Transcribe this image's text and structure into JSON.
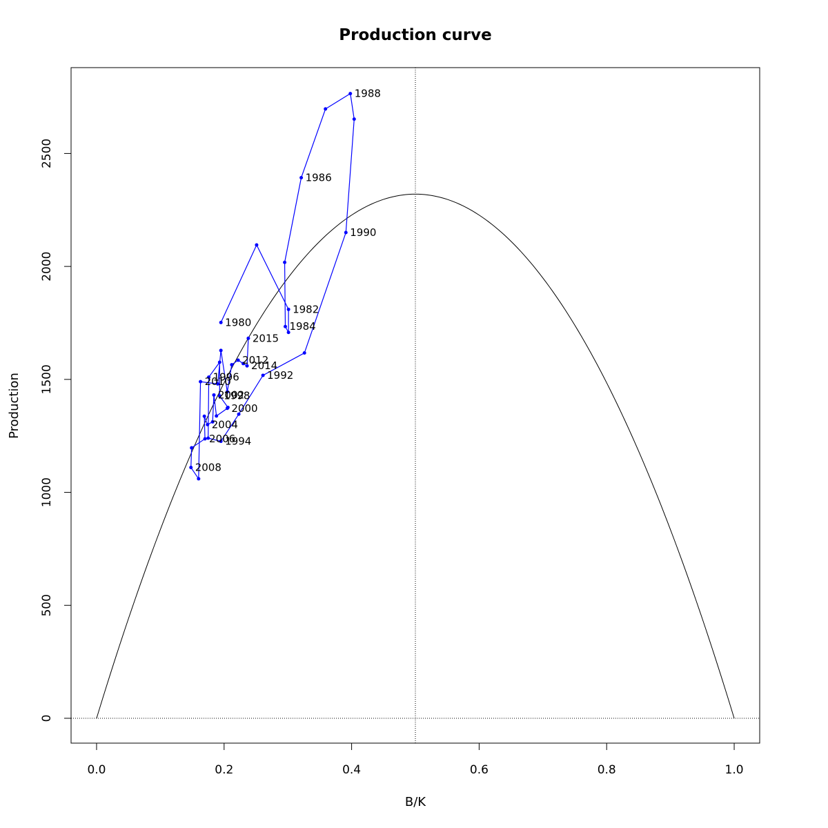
{
  "chart_data": {
    "type": "line",
    "title": "Production curve",
    "xlabel": "B/K",
    "ylabel": "Production",
    "xlim": [
      -0.04,
      1.04
    ],
    "ylim": [
      -110,
      2880
    ],
    "x_ticks": [
      0.0,
      0.2,
      0.4,
      0.6,
      0.8,
      1.0
    ],
    "x_tick_labels": [
      "0.0",
      "0.2",
      "0.4",
      "0.6",
      "0.8",
      "1.0"
    ],
    "y_ticks": [
      0,
      500,
      1000,
      1500,
      2000,
      2500
    ],
    "y_tick_labels": [
      "0",
      "500",
      "1000",
      "1500",
      "2000",
      "2500"
    ],
    "grid": false,
    "reference_lines": {
      "vertical_x": 0.5,
      "horizontal_y": 0
    },
    "colors": {
      "model_curve": "#000000",
      "series": "#0000ff",
      "reference": "#000000"
    },
    "model_curve": {
      "shape": "parabola",
      "x_range": [
        0,
        1
      ],
      "peak_x": 0.5,
      "peak_y": 2320
    },
    "series": [
      {
        "color": "#0000ff",
        "points": [
          {
            "x": 0.195,
            "y": 1752,
            "label": "1980"
          },
          {
            "x": 0.251,
            "y": 2095,
            "label": ""
          },
          {
            "x": 0.301,
            "y": 1810,
            "label": "1982"
          },
          {
            "x": 0.301,
            "y": 1708,
            "label": ""
          },
          {
            "x": 0.296,
            "y": 1734,
            "label": "1984"
          },
          {
            "x": 0.295,
            "y": 2018,
            "label": ""
          },
          {
            "x": 0.321,
            "y": 2393,
            "label": "1986"
          },
          {
            "x": 0.359,
            "y": 2697,
            "label": ""
          },
          {
            "x": 0.398,
            "y": 2765,
            "label": "1988"
          },
          {
            "x": 0.404,
            "y": 2652,
            "label": ""
          },
          {
            "x": 0.391,
            "y": 2150,
            "label": "1990"
          },
          {
            "x": 0.326,
            "y": 1617,
            "label": ""
          },
          {
            "x": 0.261,
            "y": 1518,
            "label": "1992"
          },
          {
            "x": 0.223,
            "y": 1346,
            "label": ""
          },
          {
            "x": 0.195,
            "y": 1226,
            "label": "1994"
          },
          {
            "x": 0.175,
            "y": 1240,
            "label": ""
          },
          {
            "x": 0.176,
            "y": 1510,
            "label": "1996"
          },
          {
            "x": 0.193,
            "y": 1576,
            "label": ""
          },
          {
            "x": 0.193,
            "y": 1427,
            "label": "1998"
          },
          {
            "x": 0.206,
            "y": 1376,
            "label": ""
          },
          {
            "x": 0.205,
            "y": 1372,
            "label": "2000"
          },
          {
            "x": 0.188,
            "y": 1338,
            "label": ""
          },
          {
            "x": 0.184,
            "y": 1431,
            "label": "2002"
          },
          {
            "x": 0.182,
            "y": 1312,
            "label": ""
          },
          {
            "x": 0.174,
            "y": 1300,
            "label": "2004"
          },
          {
            "x": 0.169,
            "y": 1337,
            "label": ""
          },
          {
            "x": 0.17,
            "y": 1237,
            "label": "2006"
          },
          {
            "x": 0.149,
            "y": 1197,
            "label": ""
          },
          {
            "x": 0.148,
            "y": 1110,
            "label": "2008"
          },
          {
            "x": 0.16,
            "y": 1060,
            "label": ""
          },
          {
            "x": 0.163,
            "y": 1490,
            "label": "2010"
          },
          {
            "x": 0.19,
            "y": 1480,
            "label": ""
          },
          {
            "x": 0.195,
            "y": 1628,
            "label": ""
          },
          {
            "x": 0.205,
            "y": 1445,
            "label": ""
          },
          {
            "x": 0.212,
            "y": 1565,
            "label": ""
          },
          {
            "x": 0.222,
            "y": 1585,
            "label": "2012"
          },
          {
            "x": 0.23,
            "y": 1570,
            "label": ""
          },
          {
            "x": 0.236,
            "y": 1560,
            "label": "2014"
          },
          {
            "x": 0.238,
            "y": 1682,
            "label": "2015"
          }
        ]
      }
    ]
  }
}
